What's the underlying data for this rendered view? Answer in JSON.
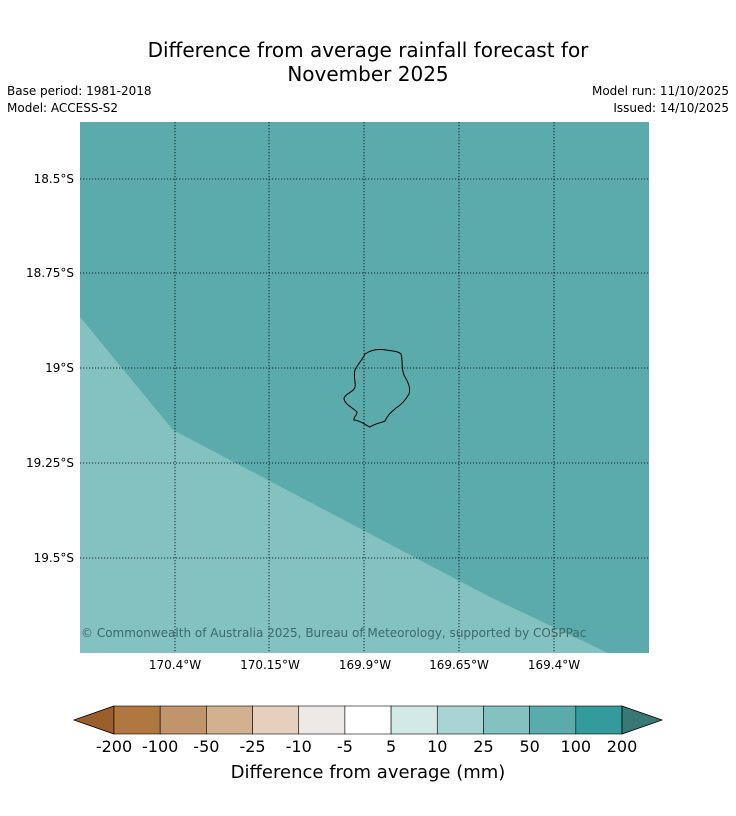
{
  "title_line1": "Difference from average rainfall forecast for",
  "title_line2": "November 2025",
  "base_period": "Base period: 1981-2018",
  "model": "Model: ACCESS-S2",
  "model_run": "Model run: 11/10/2025",
  "issued": "Issued: 14/10/2025",
  "map": {
    "background_color": "#5cabac",
    "lower_region_color": "#84c1c1",
    "latitude_labels": [
      "18.5°S",
      "18.75°S",
      "19°S",
      "19.25°S",
      "19.5°S"
    ],
    "longitude_labels": [
      "170.4°W",
      "170.15°W",
      "169.9°W",
      "169.65°W",
      "169.4°W"
    ],
    "copyright": "© Commonwealth of Australia 2025, Bureau of Meteorology, supported by COSPPac",
    "island_name_icon": "island-outline-icon"
  },
  "colorbar": {
    "label": "Difference from average (mm)",
    "ticks": [
      "-200",
      "-100",
      "-50",
      "-25",
      "-10",
      "-5",
      "5",
      "10",
      "25",
      "50",
      "100",
      "200"
    ],
    "colors": [
      "#9b5f2b",
      "#b07840",
      "#c0956b",
      "#d3b190",
      "#e5cfbd",
      "#efe9e6",
      "#ffffff",
      "#d3e9e8",
      "#a9d4d4",
      "#84c1c1",
      "#5cabac",
      "#339b9b",
      "#3a7878"
    ]
  }
}
